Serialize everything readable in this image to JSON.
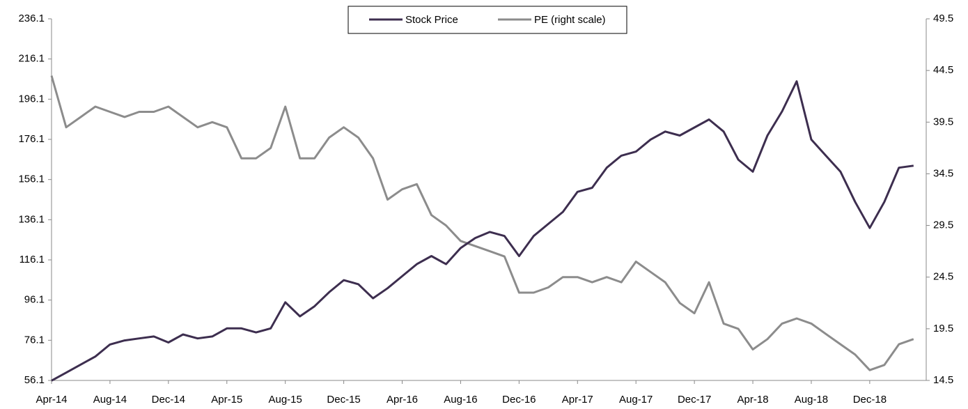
{
  "chart_data": {
    "type": "line",
    "categories": [
      "Apr-14",
      null,
      null,
      null,
      "Aug-14",
      null,
      null,
      null,
      "Dec-14",
      null,
      null,
      null,
      "Apr-15",
      null,
      null,
      null,
      "Aug-15",
      null,
      null,
      null,
      "Dec-15",
      null,
      null,
      null,
      "Apr-16",
      null,
      null,
      null,
      "Aug-16",
      null,
      null,
      null,
      "Dec-16",
      null,
      null,
      null,
      "Apr-17",
      null,
      null,
      null,
      "Aug-17",
      null,
      null,
      null,
      "Dec-17",
      null,
      null,
      null,
      "Apr-18",
      null,
      null,
      null,
      "Aug-18",
      null,
      null,
      null,
      "Dec-18",
      null,
      null,
      null
    ],
    "series": [
      {
        "name": "Stock Price",
        "color": "#3d2e4f",
        "axis": "y",
        "values": [
          56,
          60,
          64,
          68,
          74,
          76,
          77,
          78,
          75,
          79,
          77,
          78,
          82,
          82,
          80,
          82,
          95,
          88,
          93,
          100,
          106,
          104,
          97,
          102,
          108,
          114,
          118,
          114,
          122,
          127,
          130,
          128,
          118,
          128,
          134,
          140,
          150,
          152,
          162,
          168,
          170,
          176,
          180,
          178,
          182,
          186,
          180,
          166,
          160,
          178,
          190,
          205,
          176,
          168,
          160,
          145,
          132,
          145,
          162,
          163
        ]
      },
      {
        "name": "PE (right scale)",
        "color": "#8c8c8c",
        "axis": "y2",
        "values": [
          44,
          39,
          40,
          41,
          40.5,
          40,
          40.5,
          40.5,
          41,
          40,
          39,
          39.5,
          39,
          36,
          36,
          37,
          41,
          36,
          36,
          38,
          39,
          38,
          36,
          32,
          33,
          33.5,
          30.5,
          29.5,
          28,
          27.5,
          27,
          26.5,
          23,
          23,
          23.5,
          24.5,
          24.5,
          24,
          24.5,
          24,
          26,
          25,
          24,
          22,
          21,
          24,
          20,
          19.5,
          17.5,
          18.5,
          20,
          20.5,
          20,
          19,
          18,
          17,
          15.5,
          16,
          18,
          18.5
        ]
      }
    ],
    "ylim": [
      56.1,
      236.1
    ],
    "yticks": [
      56.1,
      76.1,
      96.1,
      116.1,
      136.1,
      156.1,
      176.1,
      196.1,
      216.1,
      236.1
    ],
    "y2lim": [
      14.5,
      49.5
    ],
    "y2ticks": [
      14.5,
      19.5,
      24.5,
      29.5,
      34.5,
      39.5,
      44.5,
      49.5
    ],
    "legend": "top"
  }
}
